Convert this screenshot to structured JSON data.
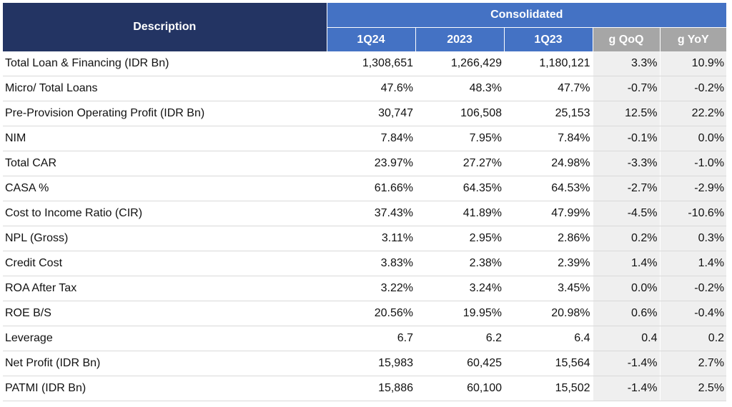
{
  "chart_data": {
    "type": "table",
    "header": {
      "description": "Description",
      "group": "Consolidated",
      "columns": [
        "1Q24",
        "2023",
        "1Q23",
        "g QoQ",
        "g YoY"
      ]
    },
    "rows": [
      {
        "label": "Total Loan & Financing (IDR Bn)",
        "values": [
          "1,308,651",
          "1,266,429",
          "1,180,121",
          "3.3%",
          "10.9%"
        ]
      },
      {
        "label": "Micro/ Total Loans",
        "values": [
          "47.6%",
          "48.3%",
          "47.7%",
          "-0.7%",
          "-0.2%"
        ]
      },
      {
        "label": "Pre-Provision Operating Profit (IDR Bn)",
        "values": [
          "30,747",
          "106,508",
          "25,153",
          "12.5%",
          "22.2%"
        ]
      },
      {
        "label": "NIM",
        "values": [
          "7.84%",
          "7.95%",
          "7.84%",
          "-0.1%",
          "0.0%"
        ]
      },
      {
        "label": "Total CAR",
        "values": [
          "23.97%",
          "27.27%",
          "24.98%",
          "-3.3%",
          "-1.0%"
        ]
      },
      {
        "label": "CASA %",
        "values": [
          "61.66%",
          "64.35%",
          "64.53%",
          "-2.7%",
          "-2.9%"
        ]
      },
      {
        "label": "Cost to Income Ratio (CIR)",
        "values": [
          "37.43%",
          "41.89%",
          "47.99%",
          "-4.5%",
          "-10.6%"
        ]
      },
      {
        "label": "NPL (Gross)",
        "values": [
          "3.11%",
          "2.95%",
          "2.86%",
          "0.2%",
          "0.3%"
        ]
      },
      {
        "label": "Credit Cost",
        "values": [
          "3.83%",
          "2.38%",
          "2.39%",
          "1.4%",
          "1.4%"
        ]
      },
      {
        "label": "ROA After Tax",
        "values": [
          "3.22%",
          "3.24%",
          "3.45%",
          "0.0%",
          "-0.2%"
        ]
      },
      {
        "label": "ROE B/S",
        "values": [
          "20.56%",
          "19.95%",
          "20.98%",
          "0.6%",
          "-0.4%"
        ]
      },
      {
        "label": "Leverage",
        "values": [
          "6.7",
          "6.2",
          "6.4",
          "0.4",
          "0.2"
        ]
      },
      {
        "label": "Net Profit (IDR Bn)",
        "values": [
          "15,983",
          "60,425",
          "15,564",
          "-1.4%",
          "2.7%"
        ]
      },
      {
        "label": "PATMI (IDR Bn)",
        "values": [
          "15,886",
          "60,100",
          "15,502",
          "-1.4%",
          "2.5%"
        ]
      }
    ]
  }
}
